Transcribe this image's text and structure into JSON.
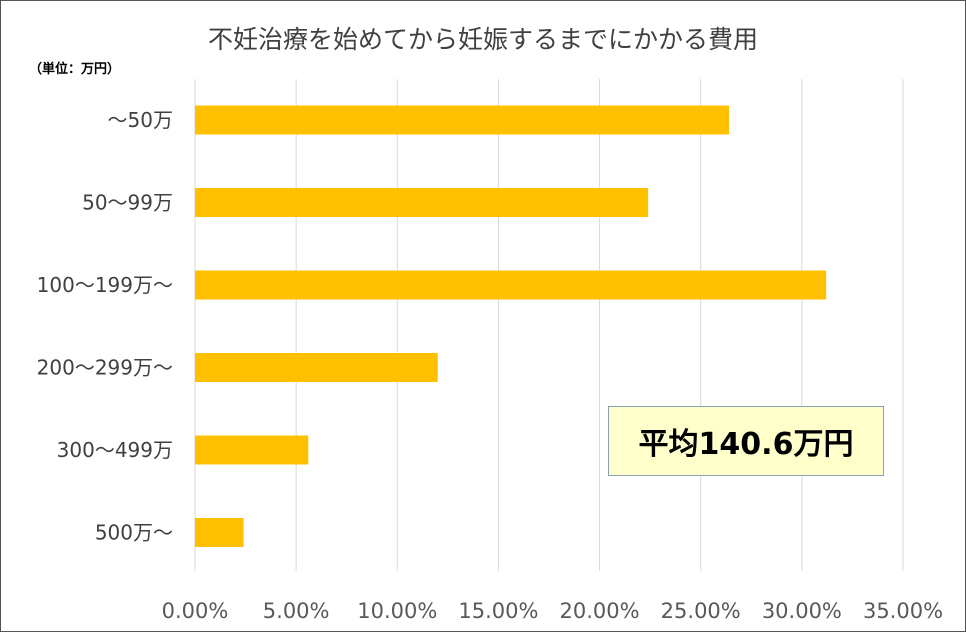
{
  "chart_data": {
    "type": "bar",
    "orientation": "horizontal",
    "title": "不妊治療を始めてから妊娠するまでにかかる費用",
    "unit_note": "（単位：万円）",
    "categories": [
      "～50万",
      "50～99万",
      "100～199万～",
      "200～299万～",
      "300～499万",
      "500万～"
    ],
    "values": [
      0.264,
      0.224,
      0.312,
      0.12,
      0.056,
      0.024
    ],
    "xlim": [
      0,
      0.35
    ],
    "xticks": [
      "0.00%",
      "5.00%",
      "10.00%",
      "15.00%",
      "20.00%",
      "25.00%",
      "30.00%",
      "35.00%"
    ],
    "bar_color": "#ffc000",
    "grid": true,
    "annotation": "平均140.6万円"
  }
}
